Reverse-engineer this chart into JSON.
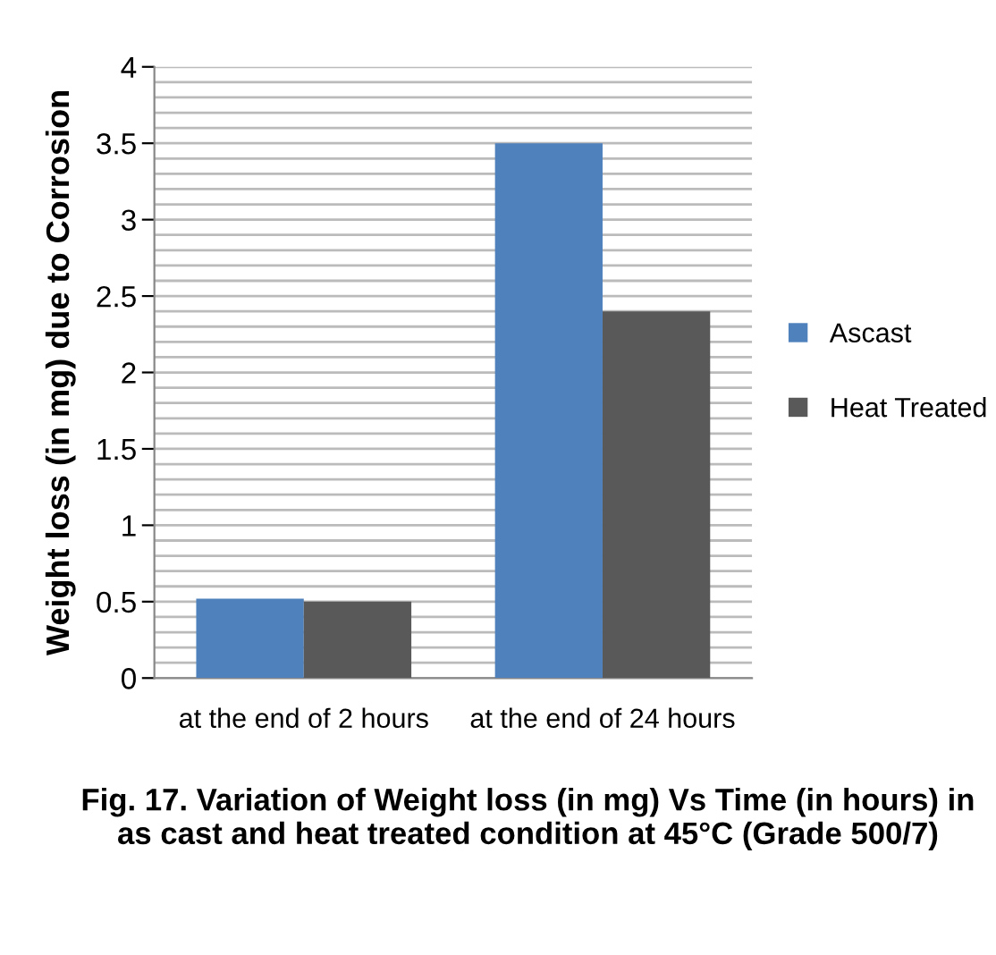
{
  "chart_data": {
    "type": "bar",
    "ylabel": "Weight loss (in mg) due to Corrosion",
    "categories": [
      "at the end of 2 hours",
      "at the end of 24 hours"
    ],
    "series": [
      {
        "name": "Ascast",
        "color": "#4f81bd",
        "values": [
          0.52,
          3.5
        ]
      },
      {
        "name": "Heat Treated",
        "color": "#595959",
        "values": [
          0.5,
          2.4
        ]
      }
    ],
    "ylim": [
      0,
      4
    ],
    "yticks": [
      0,
      {
        "value": 0.1,
        "label": null
      },
      {
        "value": 0.2,
        "label": null
      },
      {
        "value": 0.3,
        "label": null
      },
      {
        "value": 0.4,
        "label": null
      },
      0.5,
      {
        "value": 0.6,
        "label": null
      },
      {
        "value": 0.7,
        "label": null
      },
      {
        "value": 0.8,
        "label": null
      },
      {
        "value": 0.9,
        "label": null
      },
      1,
      {
        "value": 1.1,
        "label": null
      },
      {
        "value": 1.2,
        "label": null
      },
      {
        "value": 1.3,
        "label": null
      },
      {
        "value": 1.4,
        "label": null
      },
      1.5,
      {
        "value": 1.6,
        "label": null
      },
      {
        "value": 1.7,
        "label": null
      },
      {
        "value": 1.8,
        "label": null
      },
      {
        "value": 1.9,
        "label": null
      },
      2,
      {
        "value": 2.1,
        "label": null
      },
      {
        "value": 2.2,
        "label": null
      },
      {
        "value": 2.3,
        "label": null
      },
      {
        "value": 2.4,
        "label": null
      },
      2.5,
      {
        "value": 2.6,
        "label": null
      },
      {
        "value": 2.7,
        "label": null
      },
      {
        "value": 2.8,
        "label": null
      },
      {
        "value": 2.9,
        "label": null
      },
      3,
      {
        "value": 3.1,
        "label": null
      },
      {
        "value": 3.2,
        "label": null
      },
      {
        "value": 3.3,
        "label": null
      },
      {
        "value": 3.4,
        "label": null
      },
      3.5,
      {
        "value": 3.6,
        "label": null
      },
      {
        "value": 3.7,
        "label": null
      },
      {
        "value": 3.8,
        "label": null
      },
      {
        "value": 3.9,
        "label": null
      },
      4
    ],
    "grid": "y",
    "legend": "right",
    "annotations": [
      "Fig. 17. Variation of Weight loss (in mg) Vs Time (in hours) in as cast and heat treated condition at 45°C (Grade 500/7)"
    ]
  }
}
